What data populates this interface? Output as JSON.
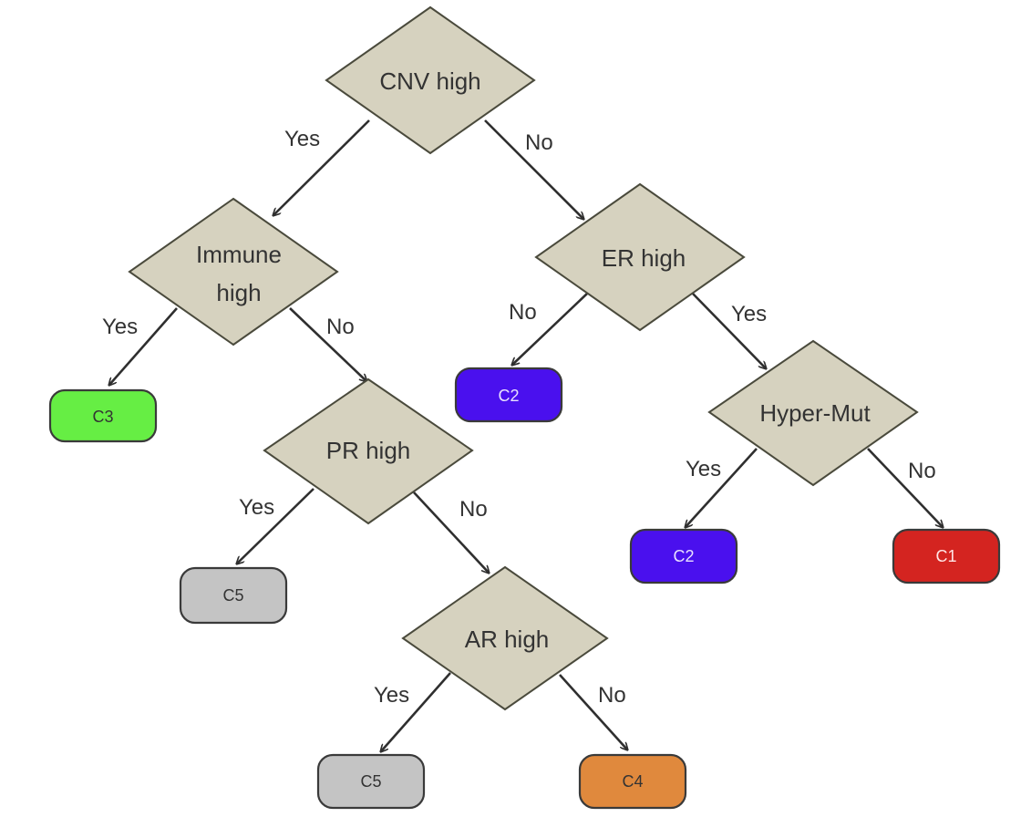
{
  "nodes": {
    "cnv": {
      "label": "CNV high"
    },
    "immune": {
      "label_line1": "Immune",
      "label_line2": "high"
    },
    "er": {
      "label": "ER high"
    },
    "pr": {
      "label": "PR high"
    },
    "hyper": {
      "label": "Hyper-Mut"
    },
    "ar": {
      "label": "AR high"
    }
  },
  "leaves": {
    "c3": {
      "label": "C3",
      "color": "#66ee44",
      "text_color": "#333333"
    },
    "c2_a": {
      "label": "C2",
      "color": "#4a10ee",
      "text_color": "#e8e0ff"
    },
    "c5_a": {
      "label": "C5",
      "color": "#c4c4c4",
      "text_color": "#333333"
    },
    "c2_b": {
      "label": "C2",
      "color": "#4a10ee",
      "text_color": "#e8e0ff"
    },
    "c1": {
      "label": "C1",
      "color": "#d42420",
      "text_color": "#ffe6e6"
    },
    "c5_b": {
      "label": "C5",
      "color": "#c4c4c4",
      "text_color": "#333333"
    },
    "c4": {
      "label": "C4",
      "color": "#e0893d",
      "text_color": "#333333"
    }
  },
  "edges": {
    "cnv_yes": "Yes",
    "cnv_no": "No",
    "immune_yes": "Yes",
    "immune_no": "No",
    "er_no": "No",
    "er_yes": "Yes",
    "pr_yes": "Yes",
    "pr_no": "No",
    "hyper_yes": "Yes",
    "hyper_no": "No",
    "ar_yes": "Yes",
    "ar_no": "No"
  }
}
